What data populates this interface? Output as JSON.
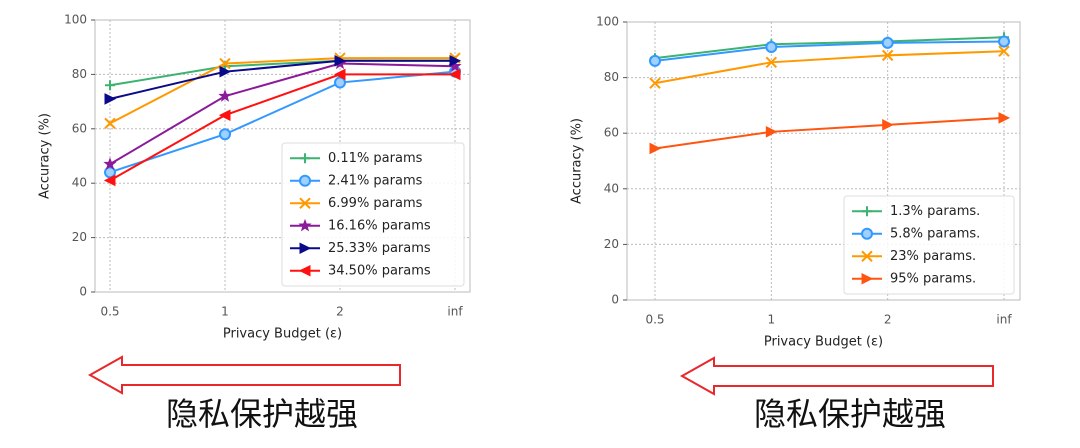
{
  "chart_data": [
    {
      "type": "line",
      "xlabel": "Privacy Budget (ε)",
      "ylabel": "Accuracy (%)",
      "categories": [
        "0.5",
        "1",
        "2",
        "inf"
      ],
      "ylim": [
        0,
        100
      ],
      "yticks": [
        0,
        20,
        40,
        60,
        80,
        100
      ],
      "grid": true,
      "legend": "lower right",
      "annotation": "隐私保护越强",
      "series": [
        {
          "name": "0.11% params",
          "color": "#3cb371",
          "marker": "plus",
          "values": [
            76,
            83,
            85,
            85
          ]
        },
        {
          "name": "2.41% params",
          "color": "#3399ff",
          "marker": "circle",
          "values": [
            44,
            58,
            77,
            81
          ]
        },
        {
          "name": "6.99% params",
          "color": "#ff9900",
          "marker": "x",
          "values": [
            62,
            84,
            86,
            86
          ]
        },
        {
          "name": "16.16% params",
          "color": "#8b1a9b",
          "marker": "star",
          "values": [
            47,
            72,
            84,
            83
          ]
        },
        {
          "name": "25.33% params",
          "color": "#0a0a8a",
          "marker": "right",
          "values": [
            71,
            81,
            85,
            85
          ]
        },
        {
          "name": "34.50% params",
          "color": "#ff1111",
          "marker": "left",
          "values": [
            41,
            65,
            80,
            80
          ]
        }
      ]
    },
    {
      "type": "line",
      "xlabel": "Privacy Budget (ε)",
      "ylabel": "Accuracy (%)",
      "categories": [
        "0.5",
        "1",
        "2",
        "inf"
      ],
      "ylim": [
        0,
        100
      ],
      "yticks": [
        0,
        20,
        40,
        60,
        80,
        100
      ],
      "grid": true,
      "legend": "lower right",
      "annotation": "隐私保护越强",
      "series": [
        {
          "name": "1.3% params.",
          "color": "#3cb371",
          "marker": "plus",
          "values": [
            87,
            92,
            93,
            94.5
          ]
        },
        {
          "name": "5.8% params.",
          "color": "#3399ff",
          "marker": "circle",
          "values": [
            86,
            91,
            92.5,
            93
          ]
        },
        {
          "name": "23% params.",
          "color": "#ff9900",
          "marker": "x",
          "values": [
            78,
            85.5,
            88,
            89.5
          ]
        },
        {
          "name": "95% params.",
          "color": "#ff5511",
          "marker": "right",
          "values": [
            54.5,
            60.5,
            63,
            65.5
          ]
        }
      ]
    }
  ]
}
